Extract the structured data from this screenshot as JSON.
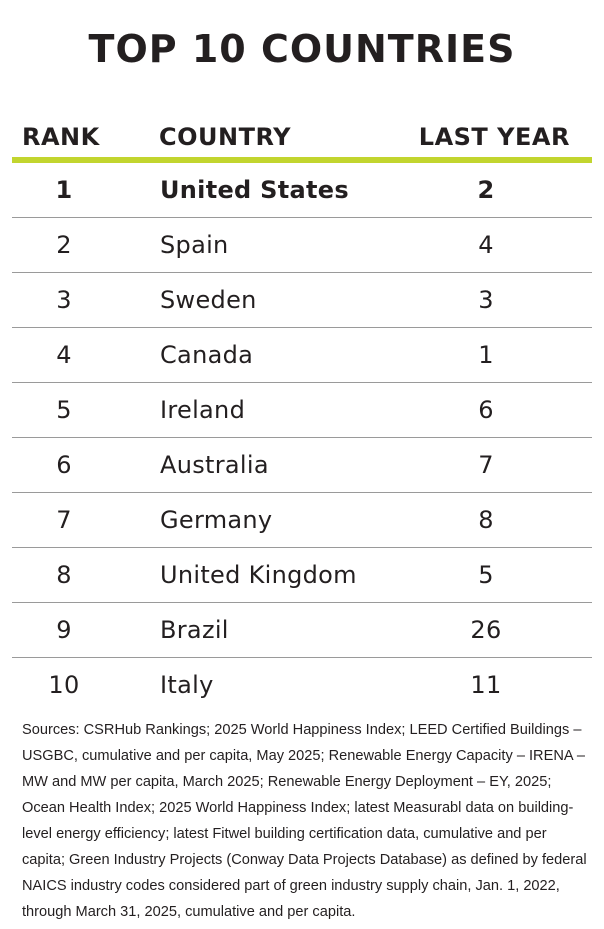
{
  "title": "TOP 10 COUNTRIES",
  "table": {
    "headers": {
      "rank": "RANK",
      "country": "COUNTRY",
      "last_year": "LAST YEAR"
    },
    "rows": [
      {
        "rank": "1",
        "country": "United States",
        "last_year": "2"
      },
      {
        "rank": "2",
        "country": "Spain",
        "last_year": "4"
      },
      {
        "rank": "3",
        "country": "Sweden",
        "last_year": "3"
      },
      {
        "rank": "4",
        "country": "Canada",
        "last_year": "1"
      },
      {
        "rank": "5",
        "country": "Ireland",
        "last_year": "6"
      },
      {
        "rank": "6",
        "country": "Australia",
        "last_year": "7"
      },
      {
        "rank": "7",
        "country": "Germany",
        "last_year": "8"
      },
      {
        "rank": "8",
        "country": "United Kingdom",
        "last_year": "5"
      },
      {
        "rank": "9",
        "country": "Brazil",
        "last_year": "26"
      },
      {
        "rank": "10",
        "country": "Italy",
        "last_year": "11"
      }
    ]
  },
  "sources": "Sources: CSRHub Rankings; 2025 World Happiness Index; LEED Certified Buildings – USGBC, cumulative and per capita, May 2025; Renewable Energy Capacity – IRENA – MW and MW per capita, March 2025; Renewable Energy Deployment – EY, 2025; Ocean Health Index; 2025 World Happiness Index; latest Measurabl data on building-level energy efficiency; latest Fitwel building certification data, cumulative and per capita; Green Industry Projects (Conway Data Projects Database) as defined by federal NAICS industry codes considered part of green industry supply chain, Jan. 1, 2022, through March 31, 2025, cumulative and per capita.",
  "colors": {
    "accent_rule": "#c2d52f",
    "row_divider": "#9a9a9a",
    "text": "#231f20"
  }
}
